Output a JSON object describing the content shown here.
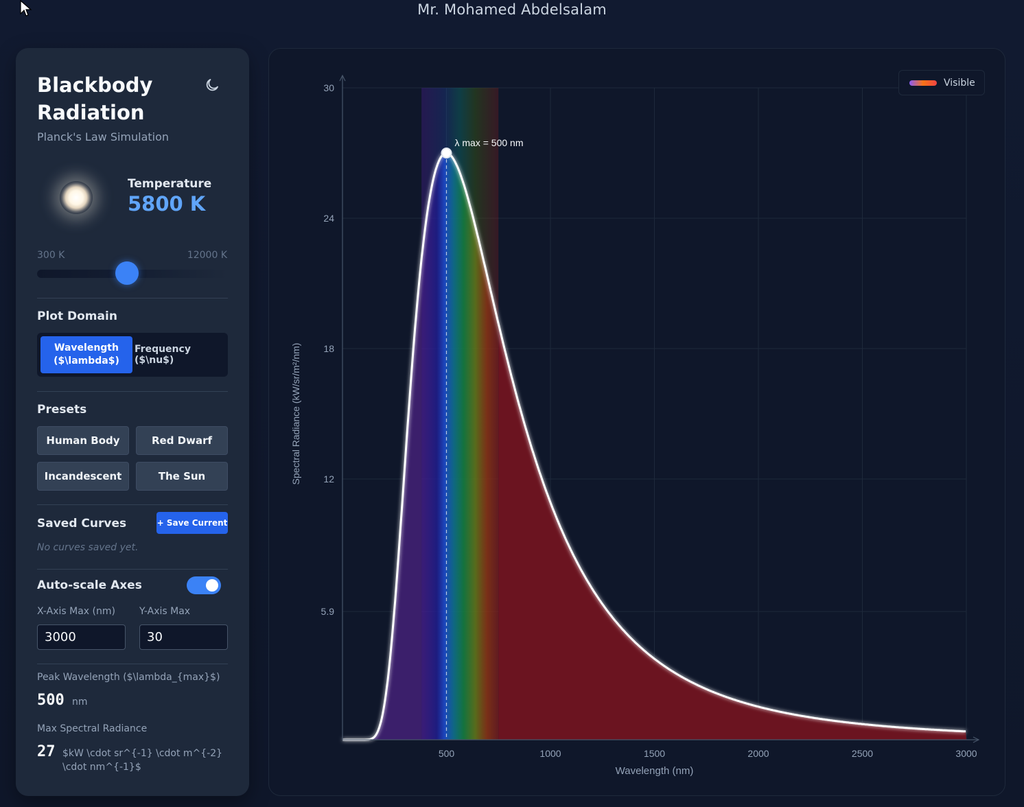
{
  "header": {
    "title": "Mr. Mohamed Abdelsalam"
  },
  "sidebar": {
    "title": "Blackbody Radiation",
    "subtitle": "Planck's Law Simulation",
    "theme_icon": "moon-icon",
    "temperature": {
      "label": "Temperature",
      "value": "5800 K",
      "min_label": "300 K",
      "max_label": "12000 K",
      "min": 300,
      "max": 12000,
      "current": 5800
    },
    "plot_domain": {
      "label": "Plot Domain",
      "options": [
        "Wavelength ($\\lambda$)",
        "Frequency ($\\nu$)"
      ],
      "selected": "Wavelength ($\\lambda$)"
    },
    "presets": {
      "label": "Presets",
      "items": [
        "Human Body",
        "Red Dwarf",
        "Incandescent",
        "The Sun"
      ]
    },
    "saved_curves": {
      "label": "Saved Curves",
      "save_button": "+ Save Current",
      "empty_text": "No curves saved yet."
    },
    "auto_scale": {
      "label": "Auto-scale Axes",
      "enabled": true
    },
    "x_axis_max": {
      "label": "X-Axis Max (nm)",
      "value": "3000"
    },
    "y_axis_max": {
      "label": "Y-Axis Max",
      "value": "30"
    },
    "peak_wavelength": {
      "label": "Peak Wavelength ($\\lambda_{max}$)",
      "value": "500",
      "unit": "nm"
    },
    "max_radiance": {
      "label": "Max Spectral Radiance",
      "value": "27",
      "unit": "$kW \\cdot sr^{-1} \\cdot m^{-2} \\cdot nm^{-1}$"
    }
  },
  "chart_data": {
    "type": "area",
    "temperature_k": 5800,
    "xlabel": "Wavelength (nm)",
    "ylabel": "Spectral Radiance (kW/sr/m²/nm)",
    "xlim": [
      0,
      3000
    ],
    "ylim": [
      0,
      30
    ],
    "x_ticks": [
      "500",
      "1000",
      "1500",
      "2000",
      "2500",
      "3000"
    ],
    "y_ticks": [
      "5.9",
      "12",
      "18",
      "24",
      "30"
    ],
    "annotation": "λ max = 500 nm",
    "peak": {
      "x": 500,
      "y": 27
    },
    "visible_band_nm": [
      380,
      750
    ],
    "legend": {
      "label": "Visible",
      "position": "top-right"
    },
    "colors": {
      "curve": "#ffffff",
      "area_ir": "#6b1420",
      "area_uv": "#3b1f6b",
      "grid": "#1e293b",
      "text": "#94a3b8"
    }
  }
}
